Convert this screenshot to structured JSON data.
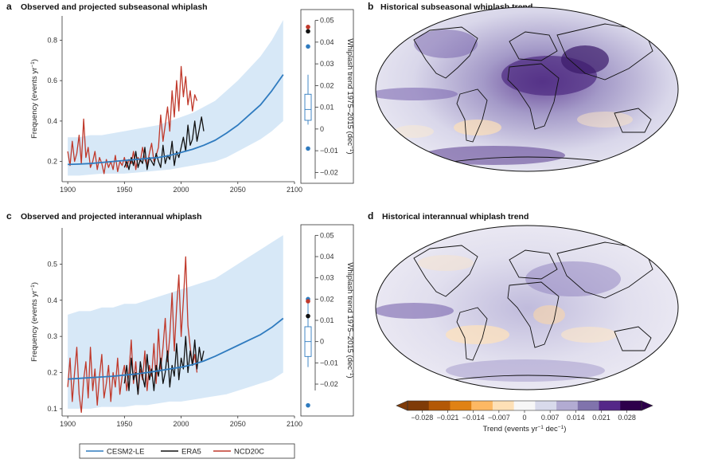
{
  "colors": {
    "cesm_line": "#2f7bbf",
    "cesm_band": "#d7e8f7",
    "era5": "#111111",
    "ncd20c": "#c0392b",
    "box": "#2f7bbf"
  },
  "legend": {
    "items": [
      {
        "label": "CESM2-LE",
        "color": "#2f7bbf"
      },
      {
        "label": "ERA5",
        "color": "#111111"
      },
      {
        "label": "NCD20C",
        "color": "#c0392b"
      }
    ]
  },
  "chart_data": [
    {
      "panel": "a",
      "type": "line",
      "title": "Observed and projected subseasonal whiplash",
      "ylabel": "Frequency (events yr",
      "ylabel_sup": "−1",
      "ylabel_end": ")",
      "xlim": [
        1895,
        2100
      ],
      "ylim": [
        0.1,
        0.92
      ],
      "xticks": [
        1900,
        1950,
        2000,
        2050,
        2100
      ],
      "yticks": [
        0.2,
        0.4,
        0.6,
        0.8
      ],
      "series": [
        {
          "name": "CESM2-LE",
          "x": [
            1900,
            1910,
            1920,
            1930,
            1940,
            1950,
            1960,
            1970,
            1980,
            1990,
            2000,
            2010,
            2020,
            2030,
            2040,
            2050,
            2060,
            2070,
            2080,
            2090
          ],
          "y": [
            0.185,
            0.187,
            0.19,
            0.195,
            0.2,
            0.205,
            0.21,
            0.215,
            0.22,
            0.23,
            0.245,
            0.26,
            0.28,
            0.305,
            0.34,
            0.38,
            0.43,
            0.48,
            0.55,
            0.63
          ],
          "band_low": [
            0.13,
            0.13,
            0.135,
            0.14,
            0.14,
            0.14,
            0.145,
            0.15,
            0.155,
            0.16,
            0.17,
            0.18,
            0.19,
            0.2,
            0.22,
            0.25,
            0.28,
            0.31,
            0.35,
            0.4
          ],
          "band_high": [
            0.32,
            0.32,
            0.33,
            0.33,
            0.34,
            0.35,
            0.36,
            0.37,
            0.38,
            0.4,
            0.42,
            0.44,
            0.47,
            0.5,
            0.55,
            0.6,
            0.66,
            0.72,
            0.8,
            0.9
          ]
        },
        {
          "name": "ERA5",
          "x": [
            1950,
            1952,
            1954,
            1956,
            1958,
            1960,
            1962,
            1964,
            1966,
            1968,
            1970,
            1972,
            1974,
            1976,
            1978,
            1980,
            1982,
            1984,
            1986,
            1988,
            1990,
            1992,
            1994,
            1996,
            1998,
            2000,
            2002,
            2004,
            2006,
            2008,
            2010,
            2012,
            2014,
            2016,
            2018,
            2020
          ],
          "y": [
            0.17,
            0.2,
            0.16,
            0.22,
            0.18,
            0.25,
            0.17,
            0.21,
            0.19,
            0.27,
            0.16,
            0.22,
            0.2,
            0.18,
            0.24,
            0.2,
            0.17,
            0.28,
            0.19,
            0.23,
            0.21,
            0.3,
            0.18,
            0.25,
            0.22,
            0.27,
            0.32,
            0.25,
            0.38,
            0.28,
            0.31,
            0.4,
            0.3,
            0.36,
            0.42,
            0.35
          ]
        },
        {
          "name": "NCD20C",
          "x": [
            1900,
            1902,
            1904,
            1906,
            1908,
            1910,
            1912,
            1914,
            1916,
            1918,
            1920,
            1922,
            1924,
            1926,
            1928,
            1930,
            1932,
            1934,
            1936,
            1938,
            1940,
            1942,
            1944,
            1946,
            1948,
            1950,
            1952,
            1954,
            1956,
            1958,
            1960,
            1962,
            1964,
            1966,
            1968,
            1970,
            1972,
            1974,
            1976,
            1978,
            1980,
            1982,
            1984,
            1986,
            1988,
            1990,
            1992,
            1994,
            1996,
            1998,
            2000,
            2002,
            2004,
            2006,
            2008,
            2010,
            2012,
            2014
          ],
          "y": [
            0.25,
            0.18,
            0.3,
            0.2,
            0.24,
            0.33,
            0.19,
            0.41,
            0.22,
            0.27,
            0.17,
            0.2,
            0.25,
            0.16,
            0.22,
            0.19,
            0.14,
            0.21,
            0.17,
            0.2,
            0.16,
            0.23,
            0.15,
            0.2,
            0.18,
            0.22,
            0.17,
            0.21,
            0.19,
            0.25,
            0.16,
            0.22,
            0.2,
            0.27,
            0.21,
            0.18,
            0.24,
            0.29,
            0.2,
            0.23,
            0.27,
            0.43,
            0.3,
            0.38,
            0.47,
            0.35,
            0.55,
            0.42,
            0.6,
            0.45,
            0.67,
            0.52,
            0.62,
            0.48,
            0.55,
            0.45,
            0.53,
            0.5
          ]
        }
      ],
      "side": {
        "type": "box",
        "ylabel": "Whiplash trend 1975–2015 (dec",
        "ylabel_sup": "−1",
        "ylabel_end": ")",
        "ylim": [
          -0.025,
          0.055
        ],
        "yticks": [
          -0.02,
          -0.01,
          0,
          0.01,
          0.02,
          0.03,
          0.04,
          0.05
        ],
        "ytick_labels": [
          "−0.02",
          "−0.01",
          "0",
          "0.01",
          "0.02",
          "0.03",
          "0.04",
          "0.05"
        ],
        "box": {
          "whisker_low": 0.002,
          "q1": 0.004,
          "median": 0.009,
          "q3": 0.016,
          "whisker_high": 0.025
        },
        "points": [
          {
            "name": "CESM2-LE",
            "value": -0.009,
            "color": "#2f7bbf"
          },
          {
            "name": "CESM2-LE",
            "value": 0.038,
            "color": "#2f7bbf"
          },
          {
            "name": "ERA5",
            "value": 0.045,
            "color": "#111111"
          },
          {
            "name": "NCD20C",
            "value": 0.047,
            "color": "#c0392b"
          }
        ]
      }
    },
    {
      "panel": "c",
      "type": "line",
      "title": "Observed and projected interannual whiplash",
      "ylabel": "Frequency (events yr",
      "ylabel_sup": "−1",
      "ylabel_end": ")",
      "xlim": [
        1895,
        2100
      ],
      "ylim": [
        0.08,
        0.6
      ],
      "xticks": [
        1900,
        1950,
        2000,
        2050,
        2100
      ],
      "yticks": [
        0.1,
        0.2,
        0.3,
        0.4,
        0.5
      ],
      "series": [
        {
          "name": "CESM2-LE",
          "x": [
            1900,
            1910,
            1920,
            1930,
            1940,
            1950,
            1960,
            1970,
            1980,
            1990,
            2000,
            2010,
            2020,
            2030,
            2040,
            2050,
            2060,
            2070,
            2080,
            2090
          ],
          "y": [
            0.182,
            0.184,
            0.186,
            0.188,
            0.19,
            0.193,
            0.196,
            0.2,
            0.205,
            0.21,
            0.215,
            0.222,
            0.232,
            0.245,
            0.26,
            0.275,
            0.29,
            0.305,
            0.325,
            0.35
          ],
          "band_low": [
            0.1,
            0.1,
            0.1,
            0.105,
            0.105,
            0.105,
            0.11,
            0.11,
            0.115,
            0.12,
            0.12,
            0.125,
            0.13,
            0.135,
            0.14,
            0.15,
            0.16,
            0.17,
            0.18,
            0.2
          ],
          "band_high": [
            0.36,
            0.37,
            0.37,
            0.38,
            0.38,
            0.39,
            0.39,
            0.4,
            0.41,
            0.42,
            0.43,
            0.44,
            0.45,
            0.46,
            0.48,
            0.5,
            0.52,
            0.54,
            0.56,
            0.58
          ]
        },
        {
          "name": "ERA5",
          "x": [
            1950,
            1952,
            1954,
            1956,
            1958,
            1960,
            1962,
            1964,
            1966,
            1968,
            1970,
            1972,
            1974,
            1976,
            1978,
            1980,
            1982,
            1984,
            1986,
            1988,
            1990,
            1992,
            1994,
            1996,
            1998,
            2000,
            2002,
            2004,
            2006,
            2008,
            2010,
            2012,
            2014,
            2016,
            2018,
            2020
          ],
          "y": [
            0.17,
            0.22,
            0.15,
            0.24,
            0.18,
            0.2,
            0.14,
            0.23,
            0.19,
            0.16,
            0.25,
            0.18,
            0.21,
            0.15,
            0.22,
            0.19,
            0.24,
            0.17,
            0.2,
            0.26,
            0.16,
            0.22,
            0.19,
            0.28,
            0.18,
            0.24,
            0.21,
            0.3,
            0.2,
            0.26,
            0.22,
            0.29,
            0.21,
            0.27,
            0.23,
            0.26
          ]
        },
        {
          "name": "NCD20C",
          "x": [
            1900,
            1902,
            1904,
            1906,
            1908,
            1910,
            1912,
            1914,
            1916,
            1918,
            1920,
            1922,
            1924,
            1926,
            1928,
            1930,
            1932,
            1934,
            1936,
            1938,
            1940,
            1942,
            1944,
            1946,
            1948,
            1950,
            1952,
            1954,
            1956,
            1958,
            1960,
            1962,
            1964,
            1966,
            1968,
            1970,
            1972,
            1974,
            1976,
            1978,
            1980,
            1982,
            1984,
            1986,
            1988,
            1990,
            1992,
            1994,
            1996,
            1998,
            2000,
            2002,
            2004,
            2006,
            2008,
            2010,
            2012,
            2014
          ],
          "y": [
            0.16,
            0.24,
            0.12,
            0.2,
            0.27,
            0.14,
            0.09,
            0.18,
            0.23,
            0.13,
            0.27,
            0.15,
            0.21,
            0.11,
            0.19,
            0.25,
            0.13,
            0.17,
            0.22,
            0.12,
            0.2,
            0.16,
            0.24,
            0.14,
            0.19,
            0.22,
            0.15,
            0.2,
            0.29,
            0.17,
            0.23,
            0.14,
            0.21,
            0.18,
            0.26,
            0.15,
            0.22,
            0.19,
            0.28,
            0.17,
            0.32,
            0.21,
            0.27,
            0.35,
            0.23,
            0.3,
            0.42,
            0.26,
            0.38,
            0.47,
            0.3,
            0.4,
            0.52,
            0.33,
            0.27,
            0.22,
            0.25,
            0.2
          ]
        }
      ],
      "side": {
        "type": "box",
        "ylabel": "Whiplash trend 1975–2015 (dec",
        "ylabel_sup": "−1",
        "ylabel_end": ")",
        "ylim": [
          -0.035,
          0.055
        ],
        "yticks": [
          -0.02,
          -0.01,
          0,
          0.01,
          0.02,
          0.03,
          0.04,
          0.05
        ],
        "ytick_labels": [
          "−0.02",
          "−0.01",
          "0",
          "0.01",
          "0.02",
          "0.03",
          "0.04",
          "0.05"
        ],
        "box": {
          "whisker_low": -0.012,
          "q1": -0.007,
          "median": 0.0,
          "q3": 0.007,
          "whisker_high": 0.018
        },
        "points": [
          {
            "name": "CESM2-LE",
            "value": -0.03,
            "color": "#2f7bbf"
          },
          {
            "name": "CESM2-LE",
            "value": 0.02,
            "color": "#2f7bbf"
          },
          {
            "name": "NCD20C",
            "value": 0.019,
            "color": "#c0392b"
          },
          {
            "name": "ERA5",
            "value": 0.012,
            "color": "#111111"
          }
        ]
      }
    },
    {
      "panel": "b",
      "type": "heatmap",
      "title": "Historical subseasonal whiplash trend",
      "projection": "mollweide"
    },
    {
      "panel": "d",
      "type": "heatmap",
      "title": "Historical interannual whiplash trend",
      "projection": "mollweide",
      "colorbar": {
        "label": "Trend (events yr",
        "label_sup": "−1",
        "label_mid": " dec",
        "label_sup2": "−1",
        "label_end": ")",
        "ticks": [
          -0.028,
          -0.021,
          -0.014,
          -0.007,
          0,
          0.007,
          0.014,
          0.021,
          0.028
        ],
        "tick_labels": [
          "−0.028",
          "−0.021",
          "−0.014",
          "−0.007",
          "0",
          "0.007",
          "0.014",
          "0.021",
          "0.028"
        ],
        "range": [
          -0.032,
          0.032
        ],
        "extend": "both",
        "colors": [
          "#7f3b08",
          "#b35806",
          "#e08214",
          "#fdb863",
          "#fee0b6",
          "#f7f7f7",
          "#d8daeb",
          "#b2abd2",
          "#8073ac",
          "#542788",
          "#2d004b"
        ]
      }
    }
  ]
}
